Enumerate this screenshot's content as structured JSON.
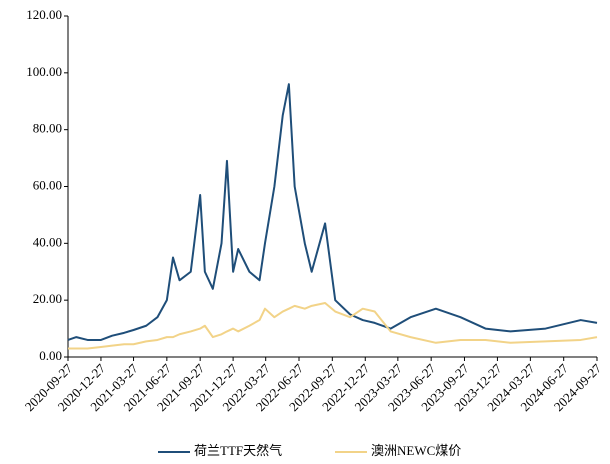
{
  "chart_data": {
    "type": "line",
    "x": [
      "2020-09-27",
      "2020-10-20",
      "2020-11-20",
      "2020-12-27",
      "2021-01-27",
      "2021-03-01",
      "2021-03-27",
      "2021-05-01",
      "2021-06-01",
      "2021-06-27",
      "2021-07-14",
      "2021-08-01",
      "2021-09-01",
      "2021-09-27",
      "2021-10-10",
      "2021-11-01",
      "2021-11-25",
      "2021-12-10",
      "2021-12-27",
      "2022-01-10",
      "2022-02-10",
      "2022-03-10",
      "2022-03-25",
      "2022-04-20",
      "2022-05-13",
      "2022-05-30",
      "2022-06-15",
      "2022-07-13",
      "2022-08-01",
      "2022-09-07",
      "2022-10-05",
      "2022-11-15",
      "2022-12-20",
      "2023-01-22",
      "2023-03-07",
      "2023-05-01",
      "2023-07-10",
      "2023-09-16",
      "2023-11-24",
      "2024-02-01",
      "2024-05-08",
      "2024-08-13",
      "2024-09-27"
    ],
    "series": [
      {
        "name": "荷兰TTF天然气",
        "color": "#1f4e79",
        "values": [
          6,
          7,
          6,
          6,
          7.5,
          8.5,
          9.5,
          11,
          14,
          20,
          35,
          27,
          30,
          57,
          30,
          24,
          40,
          69,
          30,
          38,
          30,
          27,
          40,
          60,
          85,
          96,
          60,
          40,
          30,
          47,
          20,
          15,
          13,
          12,
          10,
          14,
          17,
          14,
          10,
          9,
          10,
          13,
          12
        ]
      },
      {
        "name": "澳洲NEWC煤价",
        "color": "#f2d388",
        "values": [
          3,
          3,
          3,
          3.5,
          4,
          4.5,
          4.5,
          5.5,
          6,
          7,
          7,
          8,
          9,
          10,
          11,
          7,
          8,
          9,
          10,
          9,
          11,
          13,
          17,
          14,
          16,
          17,
          18,
          17,
          18,
          19,
          16,
          14,
          17,
          16,
          9,
          7,
          5,
          6,
          6,
          5,
          5.5,
          6,
          7
        ]
      }
    ],
    "xticks": [
      "2020-09-27",
      "2020-12-27",
      "2021-03-27",
      "2021-06-27",
      "2021-09-27",
      "2021-12-27",
      "2022-03-27",
      "2022-06-27",
      "2022-09-27",
      "2022-12-27",
      "2023-03-27",
      "2023-06-27",
      "2023-09-27",
      "2023-12-27",
      "2024-03-27",
      "2024-06-27",
      "2024-09-27"
    ],
    "xlim": [
      "2020-09-27",
      "2024-09-27"
    ],
    "ylim": [
      0,
      120
    ],
    "yticks": [
      {
        "value": 0,
        "label": "0.00"
      },
      {
        "value": 20,
        "label": "20.00"
      },
      {
        "value": 40,
        "label": "40.00"
      },
      {
        "value": 60,
        "label": "60.00"
      },
      {
        "value": 80,
        "label": "80.00"
      },
      {
        "value": 100,
        "label": "100.00"
      },
      {
        "value": 120,
        "label": "120.00"
      }
    ],
    "grid": false,
    "legend": "bottom"
  }
}
